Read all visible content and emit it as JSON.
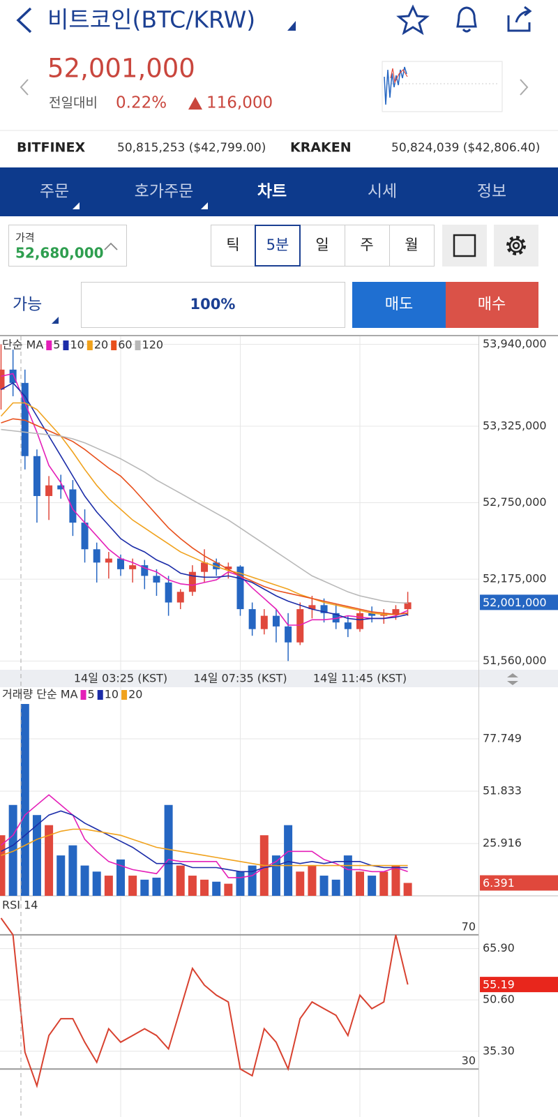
{
  "header": {
    "title": "비트코인(BTC/KRW)",
    "price": "52,001,000",
    "change_label": "전일대비",
    "change_rate": "0.22%",
    "change_amount": "116,000"
  },
  "exchanges": [
    {
      "name": "BITFINEX",
      "price": "50,815,253 ($42,799.00)"
    },
    {
      "name": "KRAKEN",
      "price": "50,824,039 ($42,806.40)"
    }
  ],
  "tabs": [
    "주문",
    "호가주문",
    "차트",
    "시세",
    "정보"
  ],
  "price_box": {
    "label": "가격",
    "value": "52,680,000"
  },
  "intervals": [
    "틱",
    "5분",
    "일",
    "주",
    "월"
  ],
  "order": {
    "available": "가능",
    "ratio": "100%",
    "sell": "매도",
    "buy": "매수"
  },
  "chart_data": [
    {
      "type": "candlestick",
      "title": "단순 MA",
      "categories": [
        null,
        null,
        null,
        null,
        null,
        null,
        null,
        null,
        null,
        null,
        "14일 03:25 (KST)",
        null,
        null,
        null,
        null,
        null,
        null,
        null,
        null,
        null,
        "14일 07:35 (KST)",
        null,
        null,
        null,
        null,
        null,
        null,
        null,
        null,
        null,
        "14일 11:45 (KST)",
        null,
        null,
        null,
        null
      ],
      "open": [
        53600000,
        53750000,
        53650000,
        53100000,
        52800000,
        52880000,
        52850000,
        52600000,
        52400000,
        52300000,
        52330000,
        52250000,
        52280000,
        52200000,
        52150000,
        52000000,
        52080000,
        52230000,
        52300000,
        52250000,
        52270000,
        51950000,
        51800000,
        51900000,
        51820000,
        51700000,
        51950000,
        51980000,
        51920000,
        51850000,
        51800000,
        51920000,
        51900000,
        51910000,
        51950000
      ],
      "high": [
        53940000,
        53900000,
        53750000,
        53150000,
        52950000,
        52960000,
        52920000,
        52700000,
        52450000,
        52380000,
        52360000,
        52330000,
        52320000,
        52250000,
        52200000,
        52100000,
        52280000,
        52400000,
        52330000,
        52300000,
        52280000,
        52000000,
        51950000,
        51950000,
        51920000,
        52000000,
        52050000,
        52030000,
        51990000,
        51900000,
        51950000,
        51970000,
        51950000,
        51980000,
        52080000
      ],
      "low": [
        53450000,
        53550000,
        53000000,
        52600000,
        52620000,
        52780000,
        52500000,
        52300000,
        52150000,
        52180000,
        52200000,
        52150000,
        52100000,
        52050000,
        51900000,
        51950000,
        52050000,
        52150000,
        52200000,
        52180000,
        51900000,
        51750000,
        51760000,
        51700000,
        51560000,
        51680000,
        51880000,
        51850000,
        51800000,
        51740000,
        51780000,
        51850000,
        51840000,
        51870000,
        51900000
      ],
      "close": [
        53750000,
        53650000,
        53100000,
        52800000,
        52880000,
        52850000,
        52600000,
        52400000,
        52300000,
        52330000,
        52250000,
        52280000,
        52200000,
        52150000,
        52000000,
        52080000,
        52230000,
        52300000,
        52250000,
        52270000,
        51950000,
        51800000,
        51900000,
        51820000,
        51700000,
        51950000,
        51980000,
        51920000,
        51850000,
        51800000,
        51920000,
        51900000,
        51910000,
        51950000,
        52001000
      ],
      "up_color": "#e0483c",
      "down_color": "#2566c2",
      "series": [
        {
          "name": "5",
          "color": "#e41fb8",
          "values": [
            53700000,
            53720000,
            53500000,
            53280000,
            53030000,
            52900000,
            52700000,
            52600000,
            52500000,
            52400000,
            52330000,
            52300000,
            52260000,
            52230000,
            52170000,
            52140000,
            52130000,
            52150000,
            52170000,
            52230000,
            52200000,
            52110000,
            52030000,
            51950000,
            51830000,
            51830000,
            51870000,
            51870000,
            51880000,
            51900000,
            51890000,
            51880000,
            51880000,
            51900000,
            51940000
          ]
        },
        {
          "name": "10",
          "color": "#1b2ca8",
          "values": [
            53600000,
            53650000,
            53550000,
            53400000,
            53250000,
            53100000,
            52950000,
            52800000,
            52680000,
            52580000,
            52480000,
            52420000,
            52380000,
            52320000,
            52280000,
            52220000,
            52200000,
            52190000,
            52190000,
            52200000,
            52180000,
            52150000,
            52100000,
            52050000,
            52010000,
            51980000,
            51950000,
            51930000,
            51910000,
            51880000,
            51870000,
            51880000,
            51880000,
            51890000,
            51910000
          ]
        },
        {
          "name": "20",
          "color": "#f0a21d",
          "values": [
            53400000,
            53500000,
            53500000,
            53450000,
            53350000,
            53250000,
            53130000,
            53000000,
            52880000,
            52780000,
            52700000,
            52620000,
            52560000,
            52500000,
            52440000,
            52380000,
            52340000,
            52300000,
            52270000,
            52240000,
            52220000,
            52190000,
            52160000,
            52130000,
            52100000,
            52060000,
            52030000,
            52000000,
            51980000,
            51960000,
            51940000,
            51920000,
            51910000,
            51910000,
            51920000
          ]
        },
        {
          "name": "60",
          "color": "#e8501c",
          "values": [
            53350000,
            53380000,
            53370000,
            53330000,
            53290000,
            53250000,
            53210000,
            53150000,
            53080000,
            53010000,
            52950000,
            52860000,
            52760000,
            52660000,
            52560000,
            52480000,
            52410000,
            52350000,
            52300000,
            52250000,
            52200000,
            52160000,
            52120000,
            52090000,
            52070000,
            52050000,
            52030000,
            52010000,
            51990000,
            51970000,
            51950000,
            51930000,
            51920000,
            51910000,
            51920000
          ]
        },
        {
          "name": "120",
          "color": "#b8b8b8",
          "values": [
            53300000,
            53290000,
            53280000,
            53270000,
            53260000,
            53250000,
            53230000,
            53200000,
            53160000,
            53120000,
            53080000,
            53030000,
            52980000,
            52920000,
            52870000,
            52820000,
            52770000,
            52720000,
            52670000,
            52620000,
            52560000,
            52500000,
            52440000,
            52380000,
            52320000,
            52260000,
            52200000,
            52160000,
            52120000,
            52080000,
            52050000,
            52030000,
            52010000,
            52000000,
            51995000
          ]
        }
      ],
      "ylim": [
        51510000,
        53990000
      ],
      "yticks": [
        {
          "value": 51560000,
          "label": "51,560,000"
        },
        {
          "value": 52175000,
          "label": "52,175,000"
        },
        {
          "value": 52750000,
          "label": "52,750,000"
        },
        {
          "value": 53325000,
          "label": "53,325,000"
        },
        {
          "value": 53940000,
          "label": "53,940,000"
        }
      ],
      "current": {
        "value": 52001000,
        "label": "52,001,000"
      },
      "current_color": "#2566c2",
      "grid": true
    },
    {
      "type": "bar",
      "title": "거래량 단순 MA",
      "values": [
        30,
        45,
        95,
        40,
        35,
        20,
        25,
        15,
        12,
        10,
        18,
        10,
        8,
        9,
        45,
        15,
        10,
        8,
        7,
        6,
        12,
        15,
        30,
        20,
        35,
        12,
        15,
        10,
        8,
        20,
        12,
        10,
        12,
        15,
        6.391
      ],
      "series": [
        {
          "name": "5",
          "color": "#e41fb8",
          "values": [
            25,
            30,
            40,
            45,
            50,
            45,
            40,
            28,
            22,
            17,
            15,
            13,
            12,
            11,
            18,
            17,
            17,
            17,
            17,
            9,
            9,
            10,
            14,
            17,
            22,
            22,
            22,
            18,
            16,
            13,
            13,
            12,
            12,
            14,
            12
          ]
        },
        {
          "name": "10",
          "color": "#1b2ca8",
          "values": [
            22,
            25,
            30,
            35,
            40,
            42,
            40,
            36,
            33,
            30,
            27,
            24,
            20,
            16,
            16,
            16,
            14,
            14,
            14,
            13,
            12,
            12,
            14,
            15,
            17,
            16,
            17,
            16,
            17,
            17,
            17,
            15,
            14,
            14,
            14
          ]
        },
        {
          "name": "20",
          "color": "#f0a21d",
          "values": [
            20,
            22,
            25,
            28,
            30,
            32,
            33,
            33,
            32,
            31,
            30,
            28,
            26,
            24,
            23,
            22,
            21,
            20,
            19,
            18,
            17,
            16,
            15,
            15,
            15,
            15,
            15,
            15,
            15,
            15,
            15,
            15,
            15,
            15,
            15
          ]
        }
      ],
      "ylim": [
        0,
        103.3
      ],
      "yticks": [
        25.916,
        51.833,
        77.749
      ],
      "current": 6.391,
      "current_color": "#e0483c",
      "grid": true
    },
    {
      "type": "line",
      "title": "RSI 14",
      "values": [
        75,
        70,
        35,
        25,
        40,
        45,
        45,
        38,
        32,
        42,
        38,
        40,
        42,
        40,
        36,
        48,
        60,
        55,
        52,
        50,
        30,
        28,
        42,
        38,
        30,
        45,
        50,
        48,
        46,
        40,
        52,
        48,
        50,
        70,
        55.19
      ],
      "color": "#d8412f",
      "ylim": [
        15.7,
        81
      ],
      "yticks": [
        {
          "value": 35.3,
          "label": "35.30"
        },
        {
          "value": 50.6,
          "label": "50.60"
        },
        {
          "value": 65.9,
          "label": "65.90"
        }
      ],
      "levels": [
        70,
        30
      ],
      "current": 55.19,
      "current_color": "#e8261c",
      "grid": true
    }
  ]
}
